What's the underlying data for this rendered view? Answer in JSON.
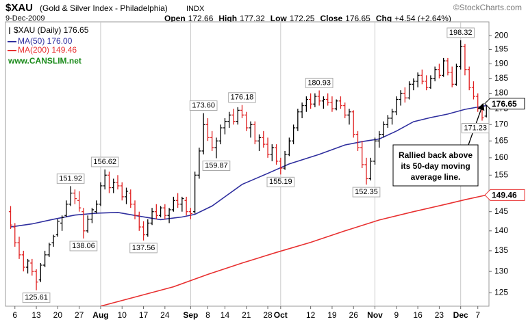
{
  "header": {
    "symbol": "$XAU",
    "description": "(Gold & Silver Index - Philadelphia)",
    "exchange": "INDX",
    "copyright": "©StockCharts.com",
    "date": "9-Dec-2009",
    "quote": [
      {
        "label": "Open",
        "value": "172.66"
      },
      {
        "label": "High",
        "value": "177.32"
      },
      {
        "label": "Low",
        "value": "172.25"
      },
      {
        "label": "Close",
        "value": "176.65"
      },
      {
        "label": "Chg",
        "value": "+4.54 (+2.64%)"
      }
    ]
  },
  "chart_data": {
    "type": "ohlc",
    "log_scale": true,
    "watermark": "www.CANSLIM.net",
    "up_color": "#000000",
    "down_color": "#e02020",
    "bars": {
      "name": "$XAU (Daily) 176.65",
      "ohlc": [
        [
          145,
          146.5,
          140.5,
          141.5
        ],
        [
          141,
          142,
          136,
          137
        ],
        [
          137,
          138.5,
          133,
          134
        ],
        [
          134,
          135,
          130,
          131
        ],
        [
          131,
          133,
          129.5,
          132.5
        ],
        [
          132,
          133,
          129,
          130
        ],
        [
          130,
          130.5,
          125.61,
          127.5
        ],
        [
          128,
          132,
          127.5,
          131.5
        ],
        [
          131.5,
          135,
          131,
          134
        ],
        [
          134,
          137,
          133.5,
          136.5
        ],
        [
          137,
          139,
          136,
          138.5
        ],
        [
          139,
          143,
          138.5,
          142.5
        ],
        [
          142,
          144,
          140,
          143.5
        ],
        [
          144,
          148,
          143.5,
          147
        ],
        [
          147,
          151.92,
          146.5,
          150
        ],
        [
          150,
          151,
          147,
          148.5
        ],
        [
          148,
          150.5,
          145,
          146
        ],
        [
          145,
          146,
          138.06,
          140
        ],
        [
          140,
          144,
          139.5,
          143
        ],
        [
          143,
          146,
          142,
          145.5
        ],
        [
          145,
          148,
          144.5,
          147
        ],
        [
          147,
          153,
          146.5,
          152
        ],
        [
          152,
          156.62,
          151,
          155
        ],
        [
          155,
          156,
          150,
          151.5
        ],
        [
          151.5,
          154,
          150,
          153
        ],
        [
          153,
          155,
          151,
          152
        ],
        [
          152,
          153,
          148,
          149
        ],
        [
          149,
          151.5,
          147,
          150.5
        ],
        [
          150,
          151,
          146,
          147
        ],
        [
          147,
          148,
          143,
          144
        ],
        [
          144,
          145,
          140,
          141
        ],
        [
          141,
          142.5,
          137.56,
          139
        ],
        [
          139,
          143,
          138.5,
          142
        ],
        [
          142,
          146,
          141.5,
          145
        ],
        [
          145,
          147,
          143,
          144
        ],
        [
          144,
          146.5,
          143.5,
          146
        ],
        [
          146,
          147,
          143,
          144
        ],
        [
          144,
          146,
          142,
          145.5
        ],
        [
          145.5,
          149,
          145,
          148
        ],
        [
          148,
          150,
          146,
          147
        ],
        [
          147,
          149,
          145,
          148.5
        ],
        [
          148,
          149,
          144,
          145
        ],
        [
          145,
          146,
          143,
          144.5
        ],
        [
          145,
          156,
          144.5,
          155
        ],
        [
          155,
          163,
          154,
          162
        ],
        [
          162,
          173.6,
          161,
          170
        ],
        [
          170,
          172,
          165,
          166
        ],
        [
          166,
          168,
          162,
          163
        ],
        [
          163,
          166,
          159.87,
          165
        ],
        [
          165,
          170,
          164,
          169
        ],
        [
          169,
          172,
          167,
          171
        ],
        [
          171,
          174,
          169,
          173
        ],
        [
          173,
          175,
          170,
          171
        ],
        [
          171,
          175.5,
          170,
          174.5
        ],
        [
          174.5,
          176.18,
          172,
          173
        ],
        [
          173,
          174,
          168,
          169
        ],
        [
          169,
          171,
          166,
          170
        ],
        [
          170,
          171,
          164,
          165
        ],
        [
          165,
          167,
          162,
          166
        ],
        [
          166,
          168,
          163,
          164
        ],
        [
          164,
          166,
          160,
          161
        ],
        [
          161,
          164,
          159,
          163
        ],
        [
          163,
          164,
          158,
          159
        ],
        [
          159,
          160,
          155.19,
          157
        ],
        [
          157,
          162,
          156.5,
          161
        ],
        [
          161,
          166,
          160.5,
          165
        ],
        [
          165,
          170,
          164,
          169
        ],
        [
          169,
          175,
          168,
          174
        ],
        [
          174,
          177,
          172,
          176
        ],
        [
          176,
          179,
          174,
          178
        ],
        [
          178,
          180,
          175,
          176.5
        ],
        [
          176.5,
          180,
          175.5,
          179
        ],
        [
          179,
          180.93,
          176,
          177.5
        ],
        [
          177.5,
          179,
          175,
          178
        ],
        [
          178,
          180,
          176,
          177
        ],
        [
          177,
          179,
          174,
          175
        ],
        [
          175,
          178,
          174.5,
          177.5
        ],
        [
          177.5,
          179,
          175,
          176
        ],
        [
          176,
          177,
          172,
          173
        ],
        [
          173,
          175,
          170,
          174
        ],
        [
          174,
          174.5,
          166,
          167
        ],
        [
          167,
          168,
          162,
          163
        ],
        [
          163,
          165,
          157,
          158
        ],
        [
          158,
          160,
          152.35,
          154
        ],
        [
          154,
          160,
          153.5,
          159
        ],
        [
          159,
          166,
          158,
          165
        ],
        [
          165,
          168,
          163,
          167
        ],
        [
          167,
          171,
          166,
          170
        ],
        [
          170,
          173,
          169,
          172
        ],
        [
          172,
          175,
          170,
          174
        ],
        [
          174,
          179,
          173,
          178
        ],
        [
          178,
          181,
          176,
          180
        ],
        [
          180,
          182,
          177,
          178.5
        ],
        [
          178.5,
          184,
          178,
          183
        ],
        [
          183,
          185,
          181,
          184
        ],
        [
          184,
          187,
          182,
          186
        ],
        [
          186,
          188,
          183,
          184
        ],
        [
          184,
          186,
          181,
          182
        ],
        [
          182,
          186,
          181.5,
          185
        ],
        [
          185,
          189,
          184,
          188
        ],
        [
          188,
          190,
          185,
          186
        ],
        [
          186,
          192,
          185.5,
          191
        ],
        [
          191,
          192,
          186,
          187
        ],
        [
          187,
          189,
          182,
          183
        ],
        [
          183,
          190,
          182.5,
          189
        ],
        [
          189,
          198.32,
          188,
          196
        ],
        [
          196,
          197,
          186,
          188
        ],
        [
          188,
          189,
          181,
          182
        ],
        [
          182,
          184,
          178,
          179
        ],
        [
          179,
          180,
          174,
          175
        ],
        [
          175,
          176,
          171.23,
          172.11
        ],
        [
          172.66,
          177.32,
          172.25,
          176.65
        ]
      ]
    },
    "series": [
      {
        "name": "MA(50) 176.00",
        "color": "#2e2e9e",
        "x": [
          0,
          5,
          10,
          15,
          20,
          25,
          30,
          35,
          40,
          43,
          47,
          50,
          54,
          60,
          65,
          72,
          78,
          82,
          86,
          90,
          94,
          98,
          102,
          106,
          111
        ],
        "values": [
          141.0,
          141.8,
          143.0,
          144.1,
          144.6,
          144.8,
          143.8,
          142.9,
          143.6,
          144.3,
          146.5,
          149.0,
          152.4,
          155.5,
          158.2,
          161.0,
          163.8,
          164.8,
          165.6,
          168.0,
          170.9,
          172.2,
          173.3,
          174.8,
          176.0
        ]
      },
      {
        "name": "MA(200) 149.46",
        "color": "#e83030",
        "x": [
          21,
          30,
          38,
          46,
          54,
          62,
          70,
          78,
          86,
          94,
          102,
          106,
          111
        ],
        "values": [
          122.0,
          124.3,
          126.4,
          129.3,
          132.0,
          134.6,
          137.1,
          140.0,
          142.8,
          145.0,
          147.1,
          148.2,
          149.46
        ]
      }
    ],
    "end_labels": [
      {
        "value": 176.65,
        "label": "176.65",
        "color": "#000000"
      },
      {
        "value": 149.46,
        "label": "149.46",
        "color": "#e83030"
      }
    ],
    "annotations": [
      {
        "x": 6,
        "value": 125.61,
        "label": "125.61",
        "side": "below"
      },
      {
        "x": 14,
        "value": 151.92,
        "label": "151.92",
        "side": "above"
      },
      {
        "x": 17,
        "value": 138.06,
        "label": "138.06",
        "side": "below"
      },
      {
        "x": 22,
        "value": 156.62,
        "label": "156.62",
        "side": "above"
      },
      {
        "x": 31,
        "value": 137.56,
        "label": "137.56",
        "side": "below"
      },
      {
        "x": 45,
        "value": 173.6,
        "label": "173.60",
        "side": "above"
      },
      {
        "x": 48,
        "value": 159.87,
        "label": "159.87",
        "side": "below"
      },
      {
        "x": 54,
        "value": 176.18,
        "label": "176.18",
        "side": "above"
      },
      {
        "x": 63,
        "value": 155.19,
        "label": "155.19",
        "side": "below"
      },
      {
        "x": 72,
        "value": 180.93,
        "label": "180.93",
        "side": "above"
      },
      {
        "x": 83,
        "value": 152.35,
        "label": "152.35",
        "side": "below"
      },
      {
        "x": 105,
        "value": 198.32,
        "label": "198.32",
        "side": "above"
      },
      {
        "x": 110,
        "value": 171.23,
        "label": "171.23",
        "side": "below"
      }
    ],
    "callout": [
      "Rallied back above",
      "its 50-day moving",
      "average line."
    ],
    "xlim": [
      -1.2,
      111.6
    ],
    "xticks": [
      {
        "value": 1,
        "label": "6"
      },
      {
        "value": 6,
        "label": "13"
      },
      {
        "value": 11,
        "label": "20"
      },
      {
        "value": 16,
        "label": "27"
      },
      {
        "value": 21,
        "label": "Aug"
      },
      {
        "value": 26,
        "label": "10"
      },
      {
        "value": 31,
        "label": "17"
      },
      {
        "value": 36,
        "label": "24"
      },
      {
        "value": 42,
        "label": "Sep"
      },
      {
        "value": 46,
        "label": "8"
      },
      {
        "value": 50,
        "label": "14"
      },
      {
        "value": 55,
        "label": "21"
      },
      {
        "value": 60,
        "label": "28"
      },
      {
        "value": 63,
        "label": "Oct"
      },
      {
        "value": 70,
        "label": "12"
      },
      {
        "value": 75,
        "label": "19"
      },
      {
        "value": 80,
        "label": "26"
      },
      {
        "value": 85,
        "label": "Nov"
      },
      {
        "value": 90,
        "label": "9"
      },
      {
        "value": 95,
        "label": "16"
      },
      {
        "value": 100,
        "label": "23"
      },
      {
        "value": 105,
        "label": "Dec"
      },
      {
        "value": 109,
        "label": "7"
      }
    ],
    "ylim": [
      122,
      205.1
    ],
    "yticks": [
      125,
      130,
      135,
      140,
      145,
      150,
      155,
      160,
      165,
      170,
      175,
      180,
      185,
      190,
      195,
      200
    ]
  }
}
